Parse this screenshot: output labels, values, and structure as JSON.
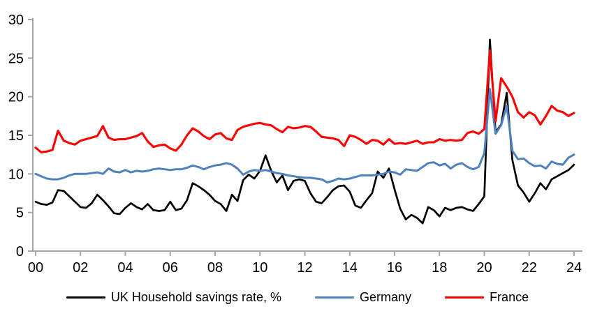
{
  "chart_data": {
    "type": "line",
    "title": "",
    "x_start": 2000,
    "x_step": 0.25,
    "x_unit": "year, quarterly observations",
    "xlim": [
      2000,
      2024.5
    ],
    "ylim": [
      0,
      30
    ],
    "grid": false,
    "legend_position": "bottom",
    "axis_color": "#A6A6A6",
    "label_color": "#000000",
    "yticks": [
      {
        "value": 0,
        "label": "0"
      },
      {
        "value": 5,
        "label": "5"
      },
      {
        "value": 10,
        "label": "10"
      },
      {
        "value": 15,
        "label": "15"
      },
      {
        "value": 20,
        "label": "20"
      },
      {
        "value": 25,
        "label": "25"
      },
      {
        "value": 30,
        "label": "30"
      }
    ],
    "xticks": [
      {
        "year": 2000,
        "label": "00"
      },
      {
        "year": 2002,
        "label": "02"
      },
      {
        "year": 2004,
        "label": "04"
      },
      {
        "year": 2006,
        "label": "06"
      },
      {
        "year": 2008,
        "label": "08"
      },
      {
        "year": 2010,
        "label": "10"
      },
      {
        "year": 2012,
        "label": "12"
      },
      {
        "year": 2014,
        "label": "14"
      },
      {
        "year": 2016,
        "label": "16"
      },
      {
        "year": 2018,
        "label": "18"
      },
      {
        "year": 2020,
        "label": "20"
      },
      {
        "year": 2022,
        "label": "22"
      },
      {
        "year": 2024,
        "label": "24"
      }
    ],
    "series": [
      {
        "name": "UK Household savings rate, %",
        "color": "#000000",
        "width": 2.7,
        "values": [
          6.4,
          6.1,
          6.0,
          6.3,
          7.9,
          7.8,
          7.1,
          6.4,
          5.7,
          5.6,
          6.2,
          7.3,
          6.6,
          5.8,
          4.9,
          4.8,
          5.6,
          6.2,
          5.7,
          5.4,
          6.1,
          5.3,
          5.2,
          5.3,
          6.4,
          5.3,
          5.5,
          6.6,
          8.8,
          8.4,
          7.9,
          7.3,
          6.5,
          6.1,
          5.2,
          7.3,
          6.5,
          9.2,
          9.9,
          9.4,
          10.4,
          12.4,
          10.4,
          8.9,
          9.8,
          7.9,
          9.1,
          9.3,
          9.1,
          7.5,
          6.4,
          6.2,
          7.0,
          7.9,
          8.4,
          8.5,
          7.7,
          5.9,
          5.6,
          6.6,
          7.5,
          10.3,
          9.5,
          10.7,
          8.0,
          5.5,
          4.1,
          4.7,
          4.3,
          3.6,
          5.7,
          5.3,
          4.5,
          5.6,
          5.3,
          5.6,
          5.7,
          5.4,
          5.2,
          6.1,
          7.1,
          27.4,
          15.4,
          16.4,
          20.5,
          11.8,
          8.5,
          7.6,
          6.4,
          7.5,
          8.8,
          8.0,
          9.3,
          9.7,
          10.1,
          10.5,
          11.2
        ]
      },
      {
        "name": "Germany",
        "color": "#4F81BD",
        "width": 3,
        "values": [
          10.0,
          9.7,
          9.4,
          9.3,
          9.3,
          9.5,
          9.8,
          10.0,
          10.0,
          10.0,
          10.1,
          10.2,
          10.0,
          10.7,
          10.3,
          10.2,
          10.5,
          10.2,
          10.4,
          10.3,
          10.4,
          10.6,
          10.7,
          10.6,
          10.5,
          10.6,
          10.6,
          10.8,
          11.1,
          10.9,
          10.6,
          10.9,
          11.1,
          11.2,
          11.4,
          11.2,
          10.7,
          9.9,
          10.3,
          10.5,
          10.4,
          10.5,
          10.3,
          10.1,
          10.0,
          9.8,
          9.7,
          9.6,
          9.5,
          9.5,
          9.4,
          9.3,
          8.9,
          9.1,
          9.4,
          9.3,
          9.4,
          9.6,
          9.8,
          9.8,
          9.8,
          9.9,
          10.0,
          10.3,
          10.2,
          9.9,
          10.6,
          10.5,
          10.4,
          10.9,
          11.4,
          11.5,
          11.1,
          11.3,
          10.7,
          11.2,
          11.4,
          10.9,
          10.6,
          10.9,
          12.7,
          21.0,
          15.2,
          16.3,
          18.8,
          13.0,
          11.9,
          12.0,
          11.4,
          11.0,
          11.1,
          10.7,
          11.6,
          11.3,
          11.2,
          12.1,
          12.5
        ]
      },
      {
        "name": "France",
        "color": "#FF0000",
        "width": 3.1,
        "values": [
          13.4,
          12.8,
          12.9,
          13.1,
          15.6,
          14.3,
          14.0,
          13.8,
          14.3,
          14.5,
          14.7,
          14.9,
          16.2,
          14.7,
          14.4,
          14.5,
          14.5,
          14.7,
          14.9,
          15.3,
          14.2,
          13.5,
          13.7,
          13.8,
          13.3,
          13.0,
          13.8,
          15.0,
          15.9,
          15.5,
          14.9,
          14.5,
          15.1,
          15.3,
          14.6,
          14.4,
          15.7,
          16.1,
          16.3,
          16.5,
          16.6,
          16.4,
          16.3,
          15.8,
          15.4,
          16.1,
          15.9,
          16.0,
          16.2,
          16.1,
          15.5,
          14.8,
          14.7,
          14.6,
          14.4,
          13.6,
          15.0,
          14.8,
          14.4,
          13.9,
          14.4,
          14.3,
          13.8,
          14.5,
          13.9,
          14.0,
          13.9,
          14.1,
          14.3,
          13.9,
          14.1,
          14.1,
          14.5,
          14.3,
          14.4,
          14.3,
          14.4,
          15.3,
          15.5,
          15.2,
          15.8,
          26.0,
          16.8,
          22.4,
          21.3,
          20.0,
          18.0,
          17.3,
          18.0,
          17.6,
          16.4,
          17.5,
          18.8,
          18.2,
          18.0,
          17.5,
          17.9
        ]
      }
    ]
  },
  "legend": {
    "items": [
      {
        "label": "UK Household savings rate, %",
        "color": "#000000"
      },
      {
        "label": "Germany",
        "color": "#4F81BD"
      },
      {
        "label": "France",
        "color": "#FF0000"
      }
    ]
  }
}
